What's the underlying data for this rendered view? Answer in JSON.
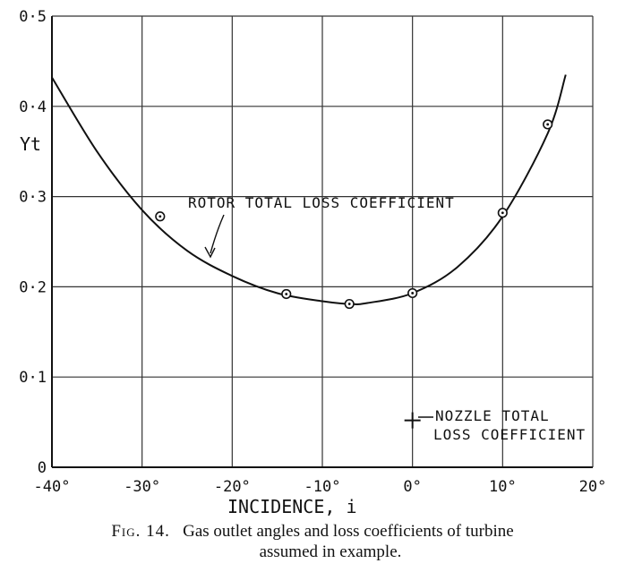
{
  "chart_data": {
    "type": "line",
    "x_axis": {
      "min": -40,
      "max": 20,
      "ticks": [
        -40,
        -30,
        -20,
        -10,
        0,
        10,
        20
      ],
      "tick_labels": [
        "-40°",
        "-30°",
        "-20°",
        "-10°",
        "0°",
        "10°",
        "20°"
      ],
      "label": "INCIDENCE, i"
    },
    "y_axis": {
      "min": 0,
      "max": 0.5,
      "ticks": [
        0,
        0.1,
        0.2,
        0.3,
        0.4,
        0.5
      ],
      "tick_labels": [
        "0",
        "0·1",
        "0·2",
        "0·3",
        "0·4",
        "0·5"
      ],
      "label": "Yt"
    },
    "grid": true,
    "series": [
      {
        "name": "ROTOR TOTAL LOSS COEFFICIENT",
        "style": "line",
        "curve_x": [
          -40,
          -35,
          -30,
          -25,
          -20,
          -15,
          -10,
          -7,
          -5,
          0,
          5,
          10,
          15,
          17
        ],
        "curve_y": [
          0.432,
          0.35,
          0.285,
          0.24,
          0.212,
          0.193,
          0.184,
          0.181,
          0.182,
          0.193,
          0.222,
          0.278,
          0.37,
          0.435
        ],
        "points_x": [
          -28,
          -14,
          -7,
          0,
          10,
          15
        ],
        "points_y": [
          0.278,
          0.192,
          0.181,
          0.193,
          0.282,
          0.38
        ]
      },
      {
        "name": "NOZZLE TOTAL LOSS COEFFICIENT",
        "style": "cross",
        "points_x": [
          0
        ],
        "points_y": [
          0.052
        ]
      }
    ],
    "annotations": {
      "rotor_line1": "ROTOR TOTAL LOSS COEFFICIENT",
      "nozzle_line1": "NOZZLE TOTAL",
      "nozzle_line2": "LOSS COEFFICIENT"
    },
    "caption_fig": "Fig. 14.",
    "caption_line1": "Gas outlet angles and loss coefficients of turbine",
    "caption_line2": "assumed in example."
  }
}
